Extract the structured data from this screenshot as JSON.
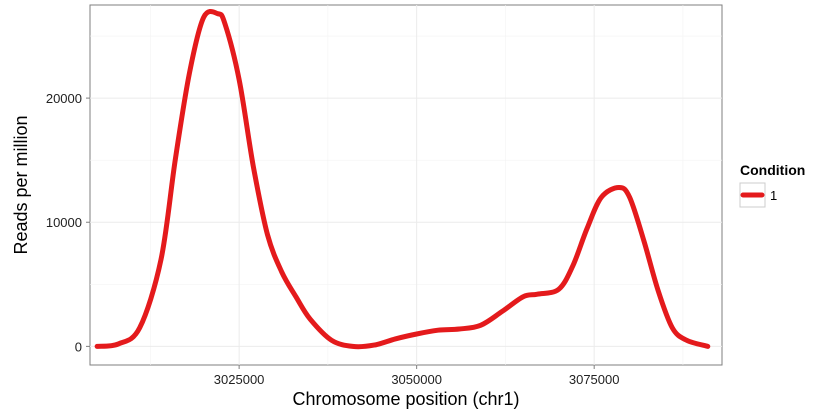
{
  "chart_data": {
    "type": "line",
    "xlabel": "Chromosome position (chr1)",
    "ylabel": "Reads per million",
    "xlim": [
      3004000,
      3093000
    ],
    "ylim": [
      -1500,
      27500
    ],
    "x_ticks": [
      3025000,
      3050000,
      3075000
    ],
    "x_tick_labels": [
      "3025000",
      "3050000",
      "3075000"
    ],
    "y_ticks": [
      0,
      10000,
      20000
    ],
    "y_tick_labels": [
      "0",
      "10000",
      "20000"
    ],
    "grid": true,
    "legend": {
      "title": "Condition",
      "placement": "right"
    },
    "series": [
      {
        "name": "1",
        "color": "#e41a1c",
        "x": [
          3005000,
          3008000,
          3011000,
          3014000,
          3016000,
          3018000,
          3020000,
          3022000,
          3023000,
          3025000,
          3027000,
          3029000,
          3031000,
          3033000,
          3035000,
          3038000,
          3041000,
          3044000,
          3047000,
          3050000,
          3053000,
          3056000,
          3059000,
          3062000,
          3065000,
          3067000,
          3070000,
          3072000,
          3074000,
          3076000,
          3078500,
          3080000,
          3082000,
          3084000,
          3086000,
          3088000,
          3091000
        ],
        "values": [
          0,
          200,
          1500,
          7000,
          15000,
          22000,
          26500,
          26800,
          26000,
          21500,
          14500,
          9000,
          6000,
          4000,
          2200,
          500,
          0,
          100,
          600,
          1000,
          1300,
          1400,
          1700,
          2800,
          4000,
          4200,
          4600,
          6500,
          9500,
          12000,
          12800,
          12000,
          8500,
          4500,
          1500,
          500,
          0
        ]
      }
    ]
  }
}
